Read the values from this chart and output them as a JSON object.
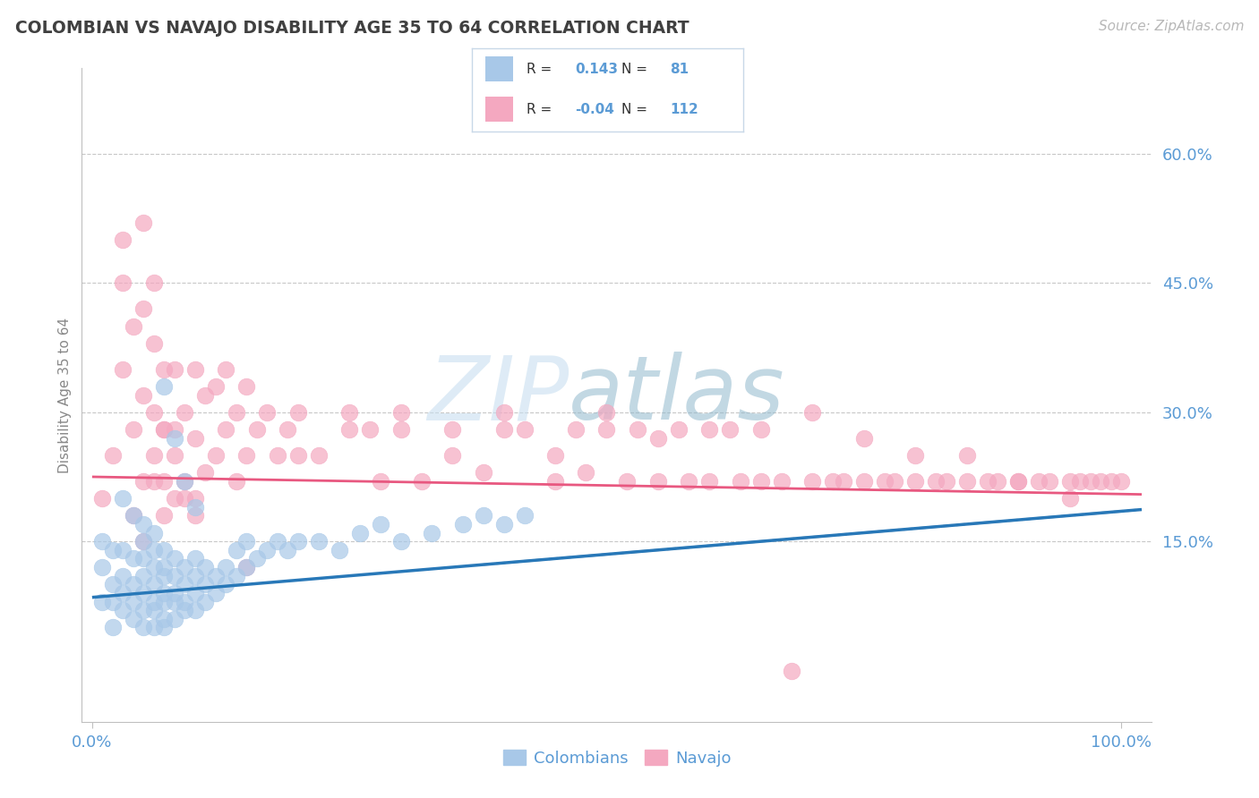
{
  "title": "COLOMBIAN VS NAVAJO DISABILITY AGE 35 TO 64 CORRELATION CHART",
  "source": "Source: ZipAtlas.com",
  "ylabel": "Disability Age 35 to 64",
  "legend_colombians": "Colombians",
  "legend_navajo": "Navajo",
  "colombian_R": 0.143,
  "colombian_N": 81,
  "navajo_R": -0.04,
  "navajo_N": 112,
  "y_ticks": [
    0.15,
    0.3,
    0.45,
    0.6
  ],
  "y_tick_labels": [
    "15.0%",
    "30.0%",
    "45.0%",
    "60.0%"
  ],
  "x_tick_labels": [
    "0.0%",
    "100.0%"
  ],
  "xlim": [
    -0.01,
    1.03
  ],
  "ylim": [
    -0.06,
    0.7
  ],
  "color_colombian_dot": "#a8c8e8",
  "color_navajo_dot": "#f4a8c0",
  "color_colombian_line": "#2878b8",
  "color_navajo_line": "#e85880",
  "color_dashed_line": "#a8b8c8",
  "color_title": "#404040",
  "color_axis_blue": "#5b9bd5",
  "color_legend_border": "#c8d8e8",
  "watermark_zip": "#c8dff0",
  "watermark_atlas": "#a8c8d8",
  "background_color": "#ffffff",
  "navajo_x": [
    0.01,
    0.02,
    0.03,
    0.03,
    0.04,
    0.04,
    0.05,
    0.05,
    0.05,
    0.06,
    0.06,
    0.06,
    0.06,
    0.07,
    0.07,
    0.07,
    0.08,
    0.08,
    0.08,
    0.09,
    0.09,
    0.1,
    0.1,
    0.1,
    0.11,
    0.11,
    0.12,
    0.12,
    0.13,
    0.13,
    0.14,
    0.14,
    0.15,
    0.15,
    0.16,
    0.17,
    0.18,
    0.19,
    0.2,
    0.22,
    0.25,
    0.27,
    0.28,
    0.3,
    0.32,
    0.35,
    0.38,
    0.4,
    0.42,
    0.45,
    0.47,
    0.48,
    0.5,
    0.52,
    0.53,
    0.55,
    0.57,
    0.58,
    0.6,
    0.62,
    0.63,
    0.65,
    0.67,
    0.68,
    0.7,
    0.72,
    0.73,
    0.75,
    0.77,
    0.78,
    0.8,
    0.82,
    0.83,
    0.85,
    0.87,
    0.88,
    0.9,
    0.92,
    0.93,
    0.95,
    0.96,
    0.97,
    0.98,
    0.99,
    1.0,
    0.05,
    0.06,
    0.07,
    0.07,
    0.08,
    0.09,
    0.1,
    0.03,
    0.04,
    0.05,
    0.5,
    0.6,
    0.7,
    0.8,
    0.15,
    0.85,
    0.9,
    0.95,
    0.65,
    0.75,
    0.55,
    0.4,
    0.3,
    0.2,
    0.35,
    0.45,
    0.25
  ],
  "navajo_y": [
    0.2,
    0.25,
    0.35,
    0.5,
    0.18,
    0.28,
    0.22,
    0.32,
    0.42,
    0.25,
    0.3,
    0.38,
    0.45,
    0.22,
    0.28,
    0.35,
    0.2,
    0.28,
    0.35,
    0.22,
    0.3,
    0.2,
    0.27,
    0.35,
    0.23,
    0.32,
    0.25,
    0.33,
    0.28,
    0.35,
    0.22,
    0.3,
    0.25,
    0.33,
    0.28,
    0.3,
    0.25,
    0.28,
    0.3,
    0.25,
    0.28,
    0.28,
    0.22,
    0.3,
    0.22,
    0.28,
    0.23,
    0.3,
    0.28,
    0.22,
    0.28,
    0.23,
    0.28,
    0.22,
    0.28,
    0.22,
    0.28,
    0.22,
    0.22,
    0.28,
    0.22,
    0.22,
    0.22,
    0.0,
    0.22,
    0.22,
    0.22,
    0.22,
    0.22,
    0.22,
    0.22,
    0.22,
    0.22,
    0.22,
    0.22,
    0.22,
    0.22,
    0.22,
    0.22,
    0.22,
    0.22,
    0.22,
    0.22,
    0.22,
    0.22,
    0.15,
    0.22,
    0.18,
    0.28,
    0.25,
    0.2,
    0.18,
    0.45,
    0.4,
    0.52,
    0.3,
    0.28,
    0.3,
    0.25,
    0.12,
    0.25,
    0.22,
    0.2,
    0.28,
    0.27,
    0.27,
    0.28,
    0.28,
    0.25,
    0.25,
    0.25,
    0.3
  ],
  "colombian_x": [
    0.01,
    0.01,
    0.01,
    0.02,
    0.02,
    0.02,
    0.03,
    0.03,
    0.03,
    0.03,
    0.04,
    0.04,
    0.04,
    0.04,
    0.05,
    0.05,
    0.05,
    0.05,
    0.05,
    0.05,
    0.06,
    0.06,
    0.06,
    0.06,
    0.06,
    0.06,
    0.07,
    0.07,
    0.07,
    0.07,
    0.07,
    0.07,
    0.07,
    0.08,
    0.08,
    0.08,
    0.08,
    0.08,
    0.09,
    0.09,
    0.09,
    0.09,
    0.1,
    0.1,
    0.1,
    0.1,
    0.11,
    0.11,
    0.11,
    0.12,
    0.12,
    0.13,
    0.13,
    0.14,
    0.14,
    0.15,
    0.15,
    0.16,
    0.17,
    0.18,
    0.19,
    0.2,
    0.22,
    0.24,
    0.26,
    0.28,
    0.3,
    0.33,
    0.36,
    0.38,
    0.4,
    0.42,
    0.07,
    0.08,
    0.09,
    0.1,
    0.05,
    0.06,
    0.04,
    0.03,
    0.02
  ],
  "colombian_y": [
    0.08,
    0.12,
    0.15,
    0.08,
    0.1,
    0.14,
    0.07,
    0.09,
    0.11,
    0.14,
    0.06,
    0.08,
    0.1,
    0.13,
    0.05,
    0.07,
    0.09,
    0.11,
    0.13,
    0.15,
    0.05,
    0.07,
    0.08,
    0.1,
    0.12,
    0.14,
    0.05,
    0.06,
    0.08,
    0.09,
    0.11,
    0.12,
    0.14,
    0.06,
    0.08,
    0.09,
    0.11,
    0.13,
    0.07,
    0.08,
    0.1,
    0.12,
    0.07,
    0.09,
    0.11,
    0.13,
    0.08,
    0.1,
    0.12,
    0.09,
    0.11,
    0.1,
    0.12,
    0.11,
    0.14,
    0.12,
    0.15,
    0.13,
    0.14,
    0.15,
    0.14,
    0.15,
    0.15,
    0.14,
    0.16,
    0.17,
    0.15,
    0.16,
    0.17,
    0.18,
    0.17,
    0.18,
    0.33,
    0.27,
    0.22,
    0.19,
    0.17,
    0.16,
    0.18,
    0.2,
    0.05
  ]
}
